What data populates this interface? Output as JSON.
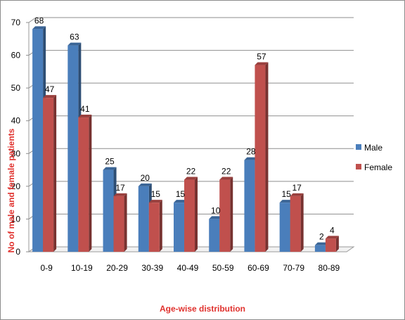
{
  "chart_data": {
    "type": "bar",
    "categories": [
      "0-9",
      "10-19",
      "20-29",
      "30-39",
      "40-49",
      "50-59",
      "60-69",
      "70-79",
      "80-89"
    ],
    "series": [
      {
        "name": "Male",
        "values": [
          68,
          63,
          25,
          20,
          15,
          10,
          28,
          15,
          2
        ],
        "color": "#4a7ebb"
      },
      {
        "name": "Female",
        "values": [
          47,
          41,
          17,
          15,
          22,
          22,
          57,
          17,
          4
        ],
        "color": "#c0504d"
      }
    ],
    "title": "",
    "xlabel": "Age-wise distribution",
    "ylabel": "No of male and female patients",
    "ylim": [
      0,
      70
    ],
    "yticks": [
      0,
      10,
      20,
      30,
      40,
      50,
      60,
      70
    ],
    "grid": true,
    "legend_position": "right",
    "style": "3d-column"
  }
}
